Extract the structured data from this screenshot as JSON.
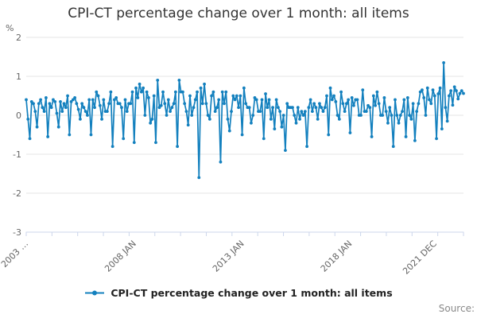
{
  "title": "CPI-CT percentage change over 1 month: all items",
  "y_axis_unit": "%",
  "legend": {
    "label": "CPI-CT percentage change over 1 month: all items"
  },
  "source_label": "Source:",
  "colors": {
    "series": "#1380be",
    "grid": "#e6e6e6",
    "axis_line": "#ccd6eb",
    "tick_label": "#666666",
    "title": "#333333",
    "legend_text": "#222222",
    "source_text": "#888888"
  },
  "chart_data": {
    "type": "line",
    "title": "CPI-CT percentage change over 1 month: all items",
    "xlabel": "",
    "ylabel": "%",
    "ylim": [
      -3,
      2
    ],
    "yticks": [
      2,
      1,
      0,
      -1,
      -2,
      -3
    ],
    "grid": true,
    "legend_position": "bottom",
    "marker": "circle",
    "x_axis": {
      "tick_count": 18,
      "labels": [
        {
          "label": "2003 …",
          "pos": 0.0
        },
        {
          "label": "2008 JAN",
          "pos": 0.2469
        },
        {
          "label": "2013 JAN",
          "pos": 0.4938
        },
        {
          "label": "2018 JAN",
          "pos": 0.7407
        },
        {
          "label": "2021 DEC",
          "pos": 0.9342
        }
      ]
    },
    "series": [
      {
        "name": "CPI-CT percentage change over 1 month: all items",
        "color": "#1380be",
        "x_start": "2003 JAN",
        "x_freq": "monthly",
        "values": [
          0.4,
          -0.1,
          -0.6,
          0.35,
          0.3,
          0.1,
          -0.3,
          0.3,
          0.4,
          0.2,
          0.1,
          0.45,
          -0.55,
          0.3,
          0.2,
          0.4,
          0.35,
          0.05,
          -0.3,
          0.35,
          0.1,
          0.3,
          0.2,
          0.5,
          -0.5,
          0.35,
          0.4,
          0.45,
          0.3,
          0.15,
          -0.1,
          0.3,
          0.2,
          0.1,
          0.0,
          0.4,
          -0.5,
          0.4,
          0.2,
          0.6,
          0.5,
          0.25,
          -0.1,
          0.4,
          0.1,
          0.1,
          0.3,
          0.6,
          -0.8,
          0.4,
          0.45,
          0.3,
          0.3,
          0.2,
          -0.6,
          0.4,
          0.1,
          0.3,
          0.3,
          0.6,
          -0.7,
          0.7,
          0.45,
          0.8,
          0.6,
          0.7,
          0.0,
          0.6,
          0.45,
          -0.2,
          -0.1,
          0.5,
          -0.7,
          0.9,
          0.2,
          0.25,
          0.6,
          0.3,
          0.0,
          0.4,
          0.1,
          0.2,
          0.3,
          0.6,
          -0.8,
          0.9,
          0.6,
          0.6,
          0.3,
          0.1,
          -0.25,
          0.5,
          0.0,
          0.2,
          0.4,
          0.6,
          -1.6,
          0.7,
          0.3,
          0.8,
          0.3,
          0.0,
          -0.1,
          0.5,
          0.6,
          0.1,
          0.2,
          0.4,
          -1.2,
          0.6,
          0.3,
          0.6,
          -0.1,
          -0.4,
          0.1,
          0.5,
          0.4,
          0.5,
          0.2,
          0.5,
          -0.5,
          0.7,
          0.3,
          0.2,
          0.2,
          -0.2,
          0.0,
          0.45,
          0.4,
          0.1,
          0.1,
          0.4,
          -0.6,
          0.55,
          0.2,
          0.4,
          -0.1,
          0.2,
          -0.35,
          0.4,
          0.2,
          0.1,
          -0.3,
          0.0,
          -0.9,
          0.3,
          0.2,
          0.2,
          0.2,
          0.0,
          -0.2,
          0.2,
          -0.1,
          0.1,
          0.0,
          0.1,
          -0.8,
          0.2,
          0.4,
          0.1,
          0.3,
          0.2,
          -0.1,
          0.3,
          0.2,
          0.1,
          0.2,
          0.5,
          -0.5,
          0.7,
          0.4,
          0.5,
          0.35,
          0.0,
          -0.1,
          0.6,
          0.3,
          0.1,
          0.3,
          0.4,
          -0.45,
          0.45,
          0.25,
          0.4,
          0.4,
          0.0,
          0.0,
          0.65,
          0.1,
          0.1,
          0.25,
          0.2,
          -0.55,
          0.5,
          0.25,
          0.6,
          0.3,
          0.0,
          0.0,
          0.45,
          0.1,
          -0.2,
          0.2,
          0.0,
          -0.8,
          0.4,
          0.0,
          -0.2,
          0.0,
          0.1,
          0.4,
          -0.55,
          0.45,
          0.0,
          -0.1,
          0.3,
          -0.65,
          0.1,
          0.3,
          0.6,
          0.65,
          0.45,
          0.0,
          0.7,
          0.4,
          0.3,
          0.65,
          0.5,
          -0.6,
          0.55,
          0.7,
          -0.35,
          1.35,
          0.2,
          -0.15,
          0.5,
          0.63,
          0.26,
          0.73,
          0.63,
          0.42,
          0.56,
          0.63,
          0.56
        ]
      }
    ]
  }
}
